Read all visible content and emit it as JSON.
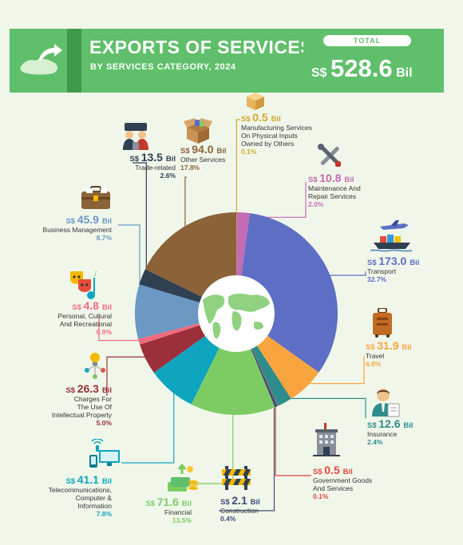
{
  "header": {
    "title": "EXPORTS OF SERVICES",
    "subtitle": "BY SERVICES CATEGORY, 2024",
    "total_label": "TOTAL",
    "total_currency": "S$",
    "total_value": "528.6",
    "total_unit": "Bil"
  },
  "currency": "S$",
  "unit": "Bil",
  "chart_data": {
    "type": "pie",
    "title": "EXPORTS OF SERVICES",
    "subtitle": "BY SERVICES CATEGORY, 2024",
    "unit": "S$ Bil",
    "slices": [
      {
        "name": "Manufacturing Services On Physical Inputs Owned by Others",
        "value": 0.5,
        "value_text": "0.5",
        "share": "0.1%",
        "color": "#d4a72c"
      },
      {
        "name": "Maintenance And Repair Services",
        "value": 10.8,
        "value_text": "10.8",
        "share": "2.0%",
        "color": "#c36bb4"
      },
      {
        "name": "Transport",
        "value": 173.0,
        "value_text": "173.0",
        "share": "32.7%",
        "color": "#5d6ec4"
      },
      {
        "name": "Travel",
        "value": 31.9,
        "value_text": "31.9",
        "share": "6.0%",
        "color": "#f8a43f"
      },
      {
        "name": "Insurance",
        "value": 12.6,
        "value_text": "12.6",
        "share": "2.4%",
        "color": "#2e8c8c"
      },
      {
        "name": "Government Goods And Services",
        "value": 0.5,
        "value_text": "0.5",
        "share": "0.1%",
        "color": "#e0463c"
      },
      {
        "name": "Construction",
        "value": 2.1,
        "value_text": "2.1",
        "share": "0.4%",
        "color": "#3d4a7a"
      },
      {
        "name": "Financial",
        "value": 71.6,
        "value_text": "71.6",
        "share": "13.5%",
        "color": "#7ccc63"
      },
      {
        "name": "Telecommunications, Computer & Information",
        "value": 41.1,
        "value_text": "41.1",
        "share": "7.8%",
        "color": "#0fa5bf"
      },
      {
        "name": "Charges For The Use Of Intellectual Property",
        "value": 26.3,
        "value_text": "26.3",
        "share": "5.0%",
        "color": "#9b2f3a"
      },
      {
        "name": "Personal, Cultural And Recreational",
        "value": 4.8,
        "value_text": "4.8",
        "share": "0.9%",
        "color": "#f06b80"
      },
      {
        "name": "Business Management",
        "value": 45.9,
        "value_text": "45.9",
        "share": "8.7%",
        "color": "#6b99c4"
      },
      {
        "name": "Trade-related",
        "value": 13.5,
        "value_text": "13.5",
        "share": "2.6%",
        "color": "#2f4052"
      },
      {
        "name": "Other Services",
        "value": 94.0,
        "value_text": "94.0",
        "share": "17.8%",
        "color": "#8c6239"
      }
    ]
  },
  "labels": [
    {
      "lines": [
        "Manufacturing Services",
        "On Physical Inputs",
        "Owned by Others"
      ]
    },
    {
      "lines": [
        "Maintenance And",
        "Repair Services"
      ]
    },
    {
      "lines": [
        "Transport"
      ]
    },
    {
      "lines": [
        "Travel"
      ]
    },
    {
      "lines": [
        "Insurance"
      ]
    },
    {
      "lines": [
        "Government Goods",
        "And Services"
      ]
    },
    {
      "lines": [
        "Construction"
      ]
    },
    {
      "lines": [
        "Financial"
      ]
    },
    {
      "lines": [
        "Telecommunications,",
        "Computer &",
        "Information"
      ]
    },
    {
      "lines": [
        "Charges For",
        "The Use Of",
        "Intellectual Property"
      ]
    },
    {
      "lines": [
        "Personal, Cultural",
        "And Recreational"
      ]
    },
    {
      "lines": [
        "Business Management"
      ]
    },
    {
      "lines": [
        "Trade-related"
      ]
    },
    {
      "lines": [
        "Other Services"
      ]
    }
  ],
  "icons": {
    "header": "singapore-map-export-icon",
    "center": "world-map-icon",
    "slices": [
      "box-icon",
      "tools-icon",
      "airplane-ship-icon",
      "suitcase-icon",
      "insurance-agent-icon",
      "government-building-icon",
      "construction-barrier-icon",
      "money-icon",
      "telecom-devices-icon",
      "ip-network-icon",
      "theatre-guitar-icon",
      "briefcase-icon",
      "trade-people-icon",
      "open-box-icon"
    ]
  }
}
